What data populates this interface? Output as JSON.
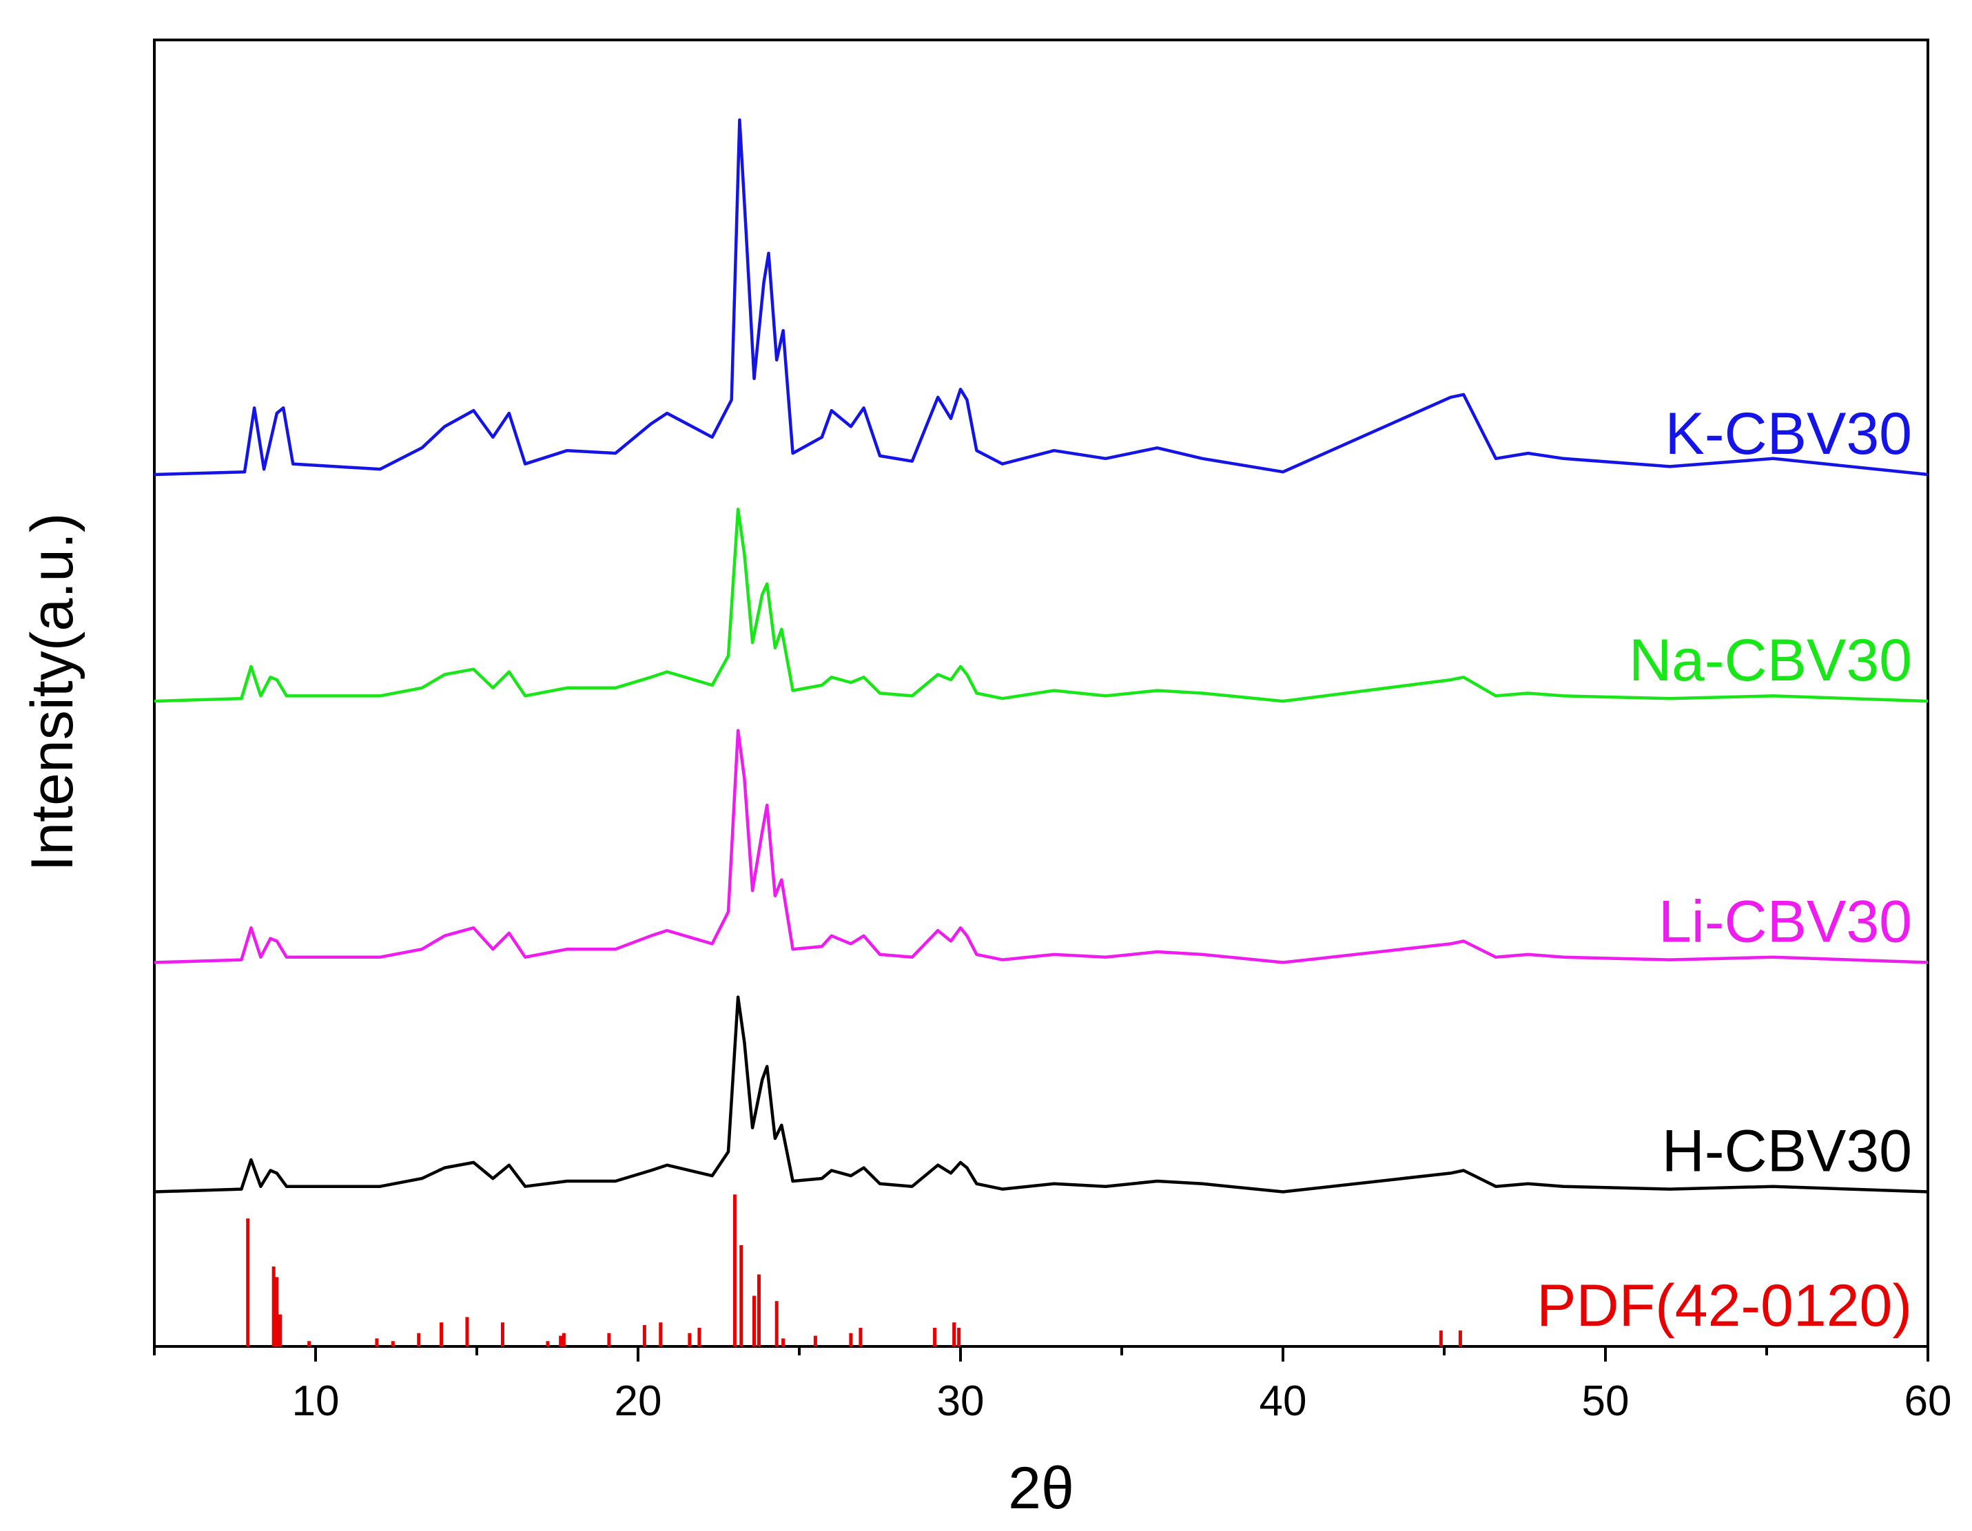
{
  "chart_data": {
    "type": "line",
    "xlabel": "2θ",
    "ylabel": "Intensity(a.u.)",
    "xlim": [
      5,
      60
    ],
    "x_ticks": [
      "10",
      "20",
      "30",
      "40",
      "50",
      "60"
    ],
    "x_tick_values": [
      10,
      20,
      30,
      40,
      50,
      60
    ],
    "y_ticks_shown": false,
    "legend": "none",
    "grid": false,
    "series": [
      {
        "name": "K-CBV30",
        "color": "#1414e6",
        "baseline": 2.62,
        "x": [
          5.0,
          7.8,
          8.1,
          8.4,
          8.8,
          9.0,
          9.3,
          12.0,
          13.3,
          14.0,
          14.9,
          15.5,
          16.0,
          16.5,
          17.8,
          19.3,
          20.4,
          20.9,
          22.3,
          22.9,
          23.15,
          23.35,
          23.6,
          23.9,
          24.05,
          24.3,
          24.5,
          24.8,
          25.7,
          26.0,
          26.6,
          27.0,
          27.5,
          28.5,
          29.3,
          29.7,
          30.0,
          30.2,
          30.5,
          31.3,
          32.9,
          34.5,
          36.1,
          37.5,
          40.0,
          45.2,
          45.6,
          46.6,
          47.6,
          48.7,
          52.0,
          55.2,
          60.0
        ],
        "y": [
          2.62,
          2.63,
          2.87,
          2.64,
          2.85,
          2.87,
          2.66,
          2.64,
          2.72,
          2.8,
          2.86,
          2.76,
          2.85,
          2.66,
          2.71,
          2.7,
          2.81,
          2.85,
          2.76,
          2.9,
          3.95,
          3.53,
          2.98,
          3.34,
          3.45,
          3.05,
          3.16,
          2.7,
          2.76,
          2.86,
          2.8,
          2.87,
          2.69,
          2.67,
          2.91,
          2.83,
          2.94,
          2.9,
          2.71,
          2.66,
          2.71,
          2.68,
          2.72,
          2.68,
          2.63,
          2.91,
          2.92,
          2.68,
          2.7,
          2.68,
          2.65,
          2.68,
          2.62
        ]
      },
      {
        "name": "Na-CBV30",
        "color": "#19e619",
        "baseline": 1.77,
        "x": [
          5.0,
          7.7,
          8.0,
          8.3,
          8.6,
          8.8,
          9.1,
          12.0,
          13.3,
          14.0,
          14.9,
          15.5,
          16.0,
          16.5,
          17.8,
          19.3,
          20.4,
          20.9,
          22.3,
          22.8,
          23.1,
          23.3,
          23.55,
          23.85,
          24.0,
          24.25,
          24.45,
          24.8,
          25.7,
          26.0,
          26.6,
          27.0,
          27.5,
          28.5,
          29.3,
          29.7,
          30.0,
          30.2,
          30.5,
          31.3,
          32.9,
          34.5,
          36.1,
          37.5,
          40.0,
          45.2,
          45.6,
          46.6,
          47.6,
          48.7,
          52.0,
          55.2,
          60.0
        ],
        "y": [
          1.77,
          1.78,
          1.9,
          1.79,
          1.86,
          1.85,
          1.79,
          1.79,
          1.82,
          1.87,
          1.89,
          1.82,
          1.88,
          1.79,
          1.82,
          1.82,
          1.86,
          1.88,
          1.83,
          1.94,
          2.49,
          2.32,
          1.99,
          2.17,
          2.21,
          1.97,
          2.04,
          1.81,
          1.83,
          1.86,
          1.84,
          1.86,
          1.8,
          1.79,
          1.87,
          1.85,
          1.9,
          1.87,
          1.8,
          1.78,
          1.81,
          1.79,
          1.81,
          1.8,
          1.77,
          1.85,
          1.86,
          1.79,
          1.8,
          1.79,
          1.78,
          1.79,
          1.77
        ]
      },
      {
        "name": "Li-CBV30",
        "color": "#ee1cee",
        "baseline": 0.79,
        "x": [
          5.0,
          7.7,
          8.0,
          8.3,
          8.6,
          8.8,
          9.1,
          12.0,
          13.3,
          14.0,
          14.9,
          15.5,
          16.0,
          16.5,
          17.8,
          19.3,
          20.4,
          20.9,
          22.3,
          22.8,
          23.1,
          23.3,
          23.55,
          23.85,
          24.0,
          24.25,
          24.45,
          24.8,
          25.7,
          26.0,
          26.6,
          27.0,
          27.5,
          28.5,
          29.3,
          29.7,
          30.0,
          30.2,
          30.5,
          31.3,
          32.9,
          34.5,
          36.1,
          37.5,
          40.0,
          45.2,
          45.6,
          46.6,
          47.6,
          48.7,
          52.0,
          55.2,
          60.0
        ],
        "y": [
          0.79,
          0.8,
          0.92,
          0.81,
          0.88,
          0.87,
          0.81,
          0.81,
          0.84,
          0.89,
          0.92,
          0.84,
          0.9,
          0.81,
          0.84,
          0.84,
          0.89,
          0.91,
          0.86,
          0.98,
          1.66,
          1.48,
          1.06,
          1.28,
          1.38,
          1.04,
          1.1,
          0.84,
          0.85,
          0.89,
          0.86,
          0.89,
          0.82,
          0.81,
          0.91,
          0.87,
          0.92,
          0.89,
          0.82,
          0.8,
          0.82,
          0.81,
          0.83,
          0.82,
          0.79,
          0.86,
          0.87,
          0.81,
          0.82,
          0.81,
          0.8,
          0.81,
          0.79
        ]
      },
      {
        "name": "H-CBV30",
        "color": "#000000",
        "baseline": -0.07,
        "x": [
          5.0,
          7.7,
          8.0,
          8.3,
          8.6,
          8.8,
          9.1,
          12.0,
          13.3,
          14.0,
          14.9,
          15.5,
          16.0,
          16.5,
          17.8,
          19.3,
          20.4,
          20.9,
          22.3,
          22.8,
          23.1,
          23.3,
          23.55,
          23.85,
          24.0,
          24.25,
          24.45,
          24.8,
          25.7,
          26.0,
          26.6,
          27.0,
          27.5,
          28.5,
          29.3,
          29.7,
          30.0,
          30.2,
          30.5,
          31.3,
          32.9,
          34.5,
          36.1,
          37.5,
          40.0,
          45.2,
          45.6,
          46.6,
          47.6,
          48.7,
          52.0,
          55.2,
          60.0
        ],
        "y": [
          -0.07,
          -0.06,
          0.05,
          -0.05,
          0.01,
          0.0,
          -0.05,
          -0.05,
          -0.02,
          0.02,
          0.04,
          -0.02,
          0.03,
          -0.05,
          -0.03,
          -0.03,
          0.01,
          0.03,
          -0.01,
          0.08,
          0.66,
          0.49,
          0.17,
          0.35,
          0.4,
          0.13,
          0.18,
          -0.03,
          -0.02,
          0.01,
          -0.01,
          0.02,
          -0.04,
          -0.05,
          0.03,
          0.0,
          0.04,
          0.02,
          -0.04,
          -0.06,
          -0.04,
          -0.05,
          -0.03,
          -0.04,
          -0.07,
          0.0,
          0.01,
          -0.05,
          -0.04,
          -0.05,
          -0.06,
          -0.05,
          -0.07
        ]
      },
      {
        "name": "PDF(42-0120)",
        "color": "#e60000",
        "kind": "sticks",
        "baseline": -0.65,
        "x": [
          7.9,
          8.7,
          8.8,
          8.9,
          9.8,
          11.9,
          12.4,
          13.2,
          13.9,
          14.7,
          15.8,
          17.2,
          17.6,
          17.7,
          19.1,
          20.2,
          20.7,
          21.6,
          21.9,
          23.0,
          23.2,
          23.6,
          23.75,
          24.3,
          24.5,
          25.5,
          26.6,
          26.9,
          29.2,
          29.8,
          29.95,
          44.9,
          45.5
        ],
        "y": [
          0.48,
          0.3,
          0.26,
          0.12,
          0.02,
          0.03,
          0.02,
          0.05,
          0.09,
          0.11,
          0.09,
          0.02,
          0.04,
          0.05,
          0.05,
          0.08,
          0.09,
          0.05,
          0.07,
          0.57,
          0.38,
          0.19,
          0.27,
          0.17,
          0.03,
          0.04,
          0.05,
          0.07,
          0.07,
          0.09,
          0.07,
          0.06,
          0.06
        ]
      }
    ]
  }
}
